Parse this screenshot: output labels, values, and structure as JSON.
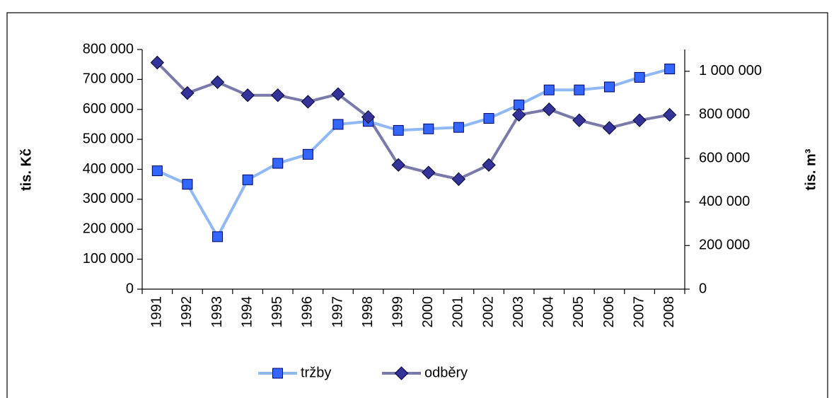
{
  "chart_data": {
    "type": "line",
    "y_label": "tis. Kč",
    "y2_label": "tis. m³",
    "categories": [
      "1991",
      "1992",
      "1993",
      "1994",
      "1995",
      "1996",
      "1997",
      "1998",
      "1999",
      "2000",
      "2001",
      "2002",
      "2003",
      "2004",
      "2005",
      "2006",
      "2007",
      "2008"
    ],
    "series": [
      {
        "name": "tržby",
        "color": "#8fb8f4",
        "marker": "square",
        "marker_color": "#3366ff",
        "values": [
          395000,
          350000,
          175000,
          365000,
          420000,
          450000,
          550000,
          560000,
          530000,
          535000,
          540000,
          570000,
          615000,
          665000,
          665000,
          675000,
          707000,
          735000
        ]
      },
      {
        "name": "odběry",
        "color": "#7a7aaa",
        "marker": "diamond",
        "marker_color": "#333399",
        "axis": "y2",
        "values": [
          1040000,
          900000,
          950000,
          890000,
          890000,
          860000,
          895000,
          790000,
          570000,
          535000,
          505000,
          570000,
          800000,
          825000,
          775000,
          740000,
          775000,
          800000
        ]
      }
    ],
    "ylim": [
      0,
      800000
    ],
    "yticks": [
      0,
      {
        "value": 100000,
        "label": "100 000"
      },
      {
        "value": 200000,
        "label": "200 000"
      },
      {
        "value": 300000,
        "label": "300 000"
      },
      {
        "value": 400000,
        "label": "400 000"
      },
      {
        "value": 500000,
        "label": "500 000"
      },
      {
        "value": 600000,
        "label": "600 000"
      },
      {
        "value": 700000,
        "label": "700 000"
      },
      {
        "value": 800000,
        "label": "800 000"
      }
    ],
    "y2lim": [
      0,
      1100000
    ],
    "y2ticks": [
      0,
      {
        "value": 200000,
        "label": "200 000"
      },
      {
        "value": 400000,
        "label": "400 000"
      },
      {
        "value": 600000,
        "label": "600 000"
      },
      {
        "value": 800000,
        "label": "800 000"
      },
      {
        "value": 1000000,
        "label": "1 000 000"
      }
    ],
    "grid": false,
    "legend": "bottom"
  }
}
